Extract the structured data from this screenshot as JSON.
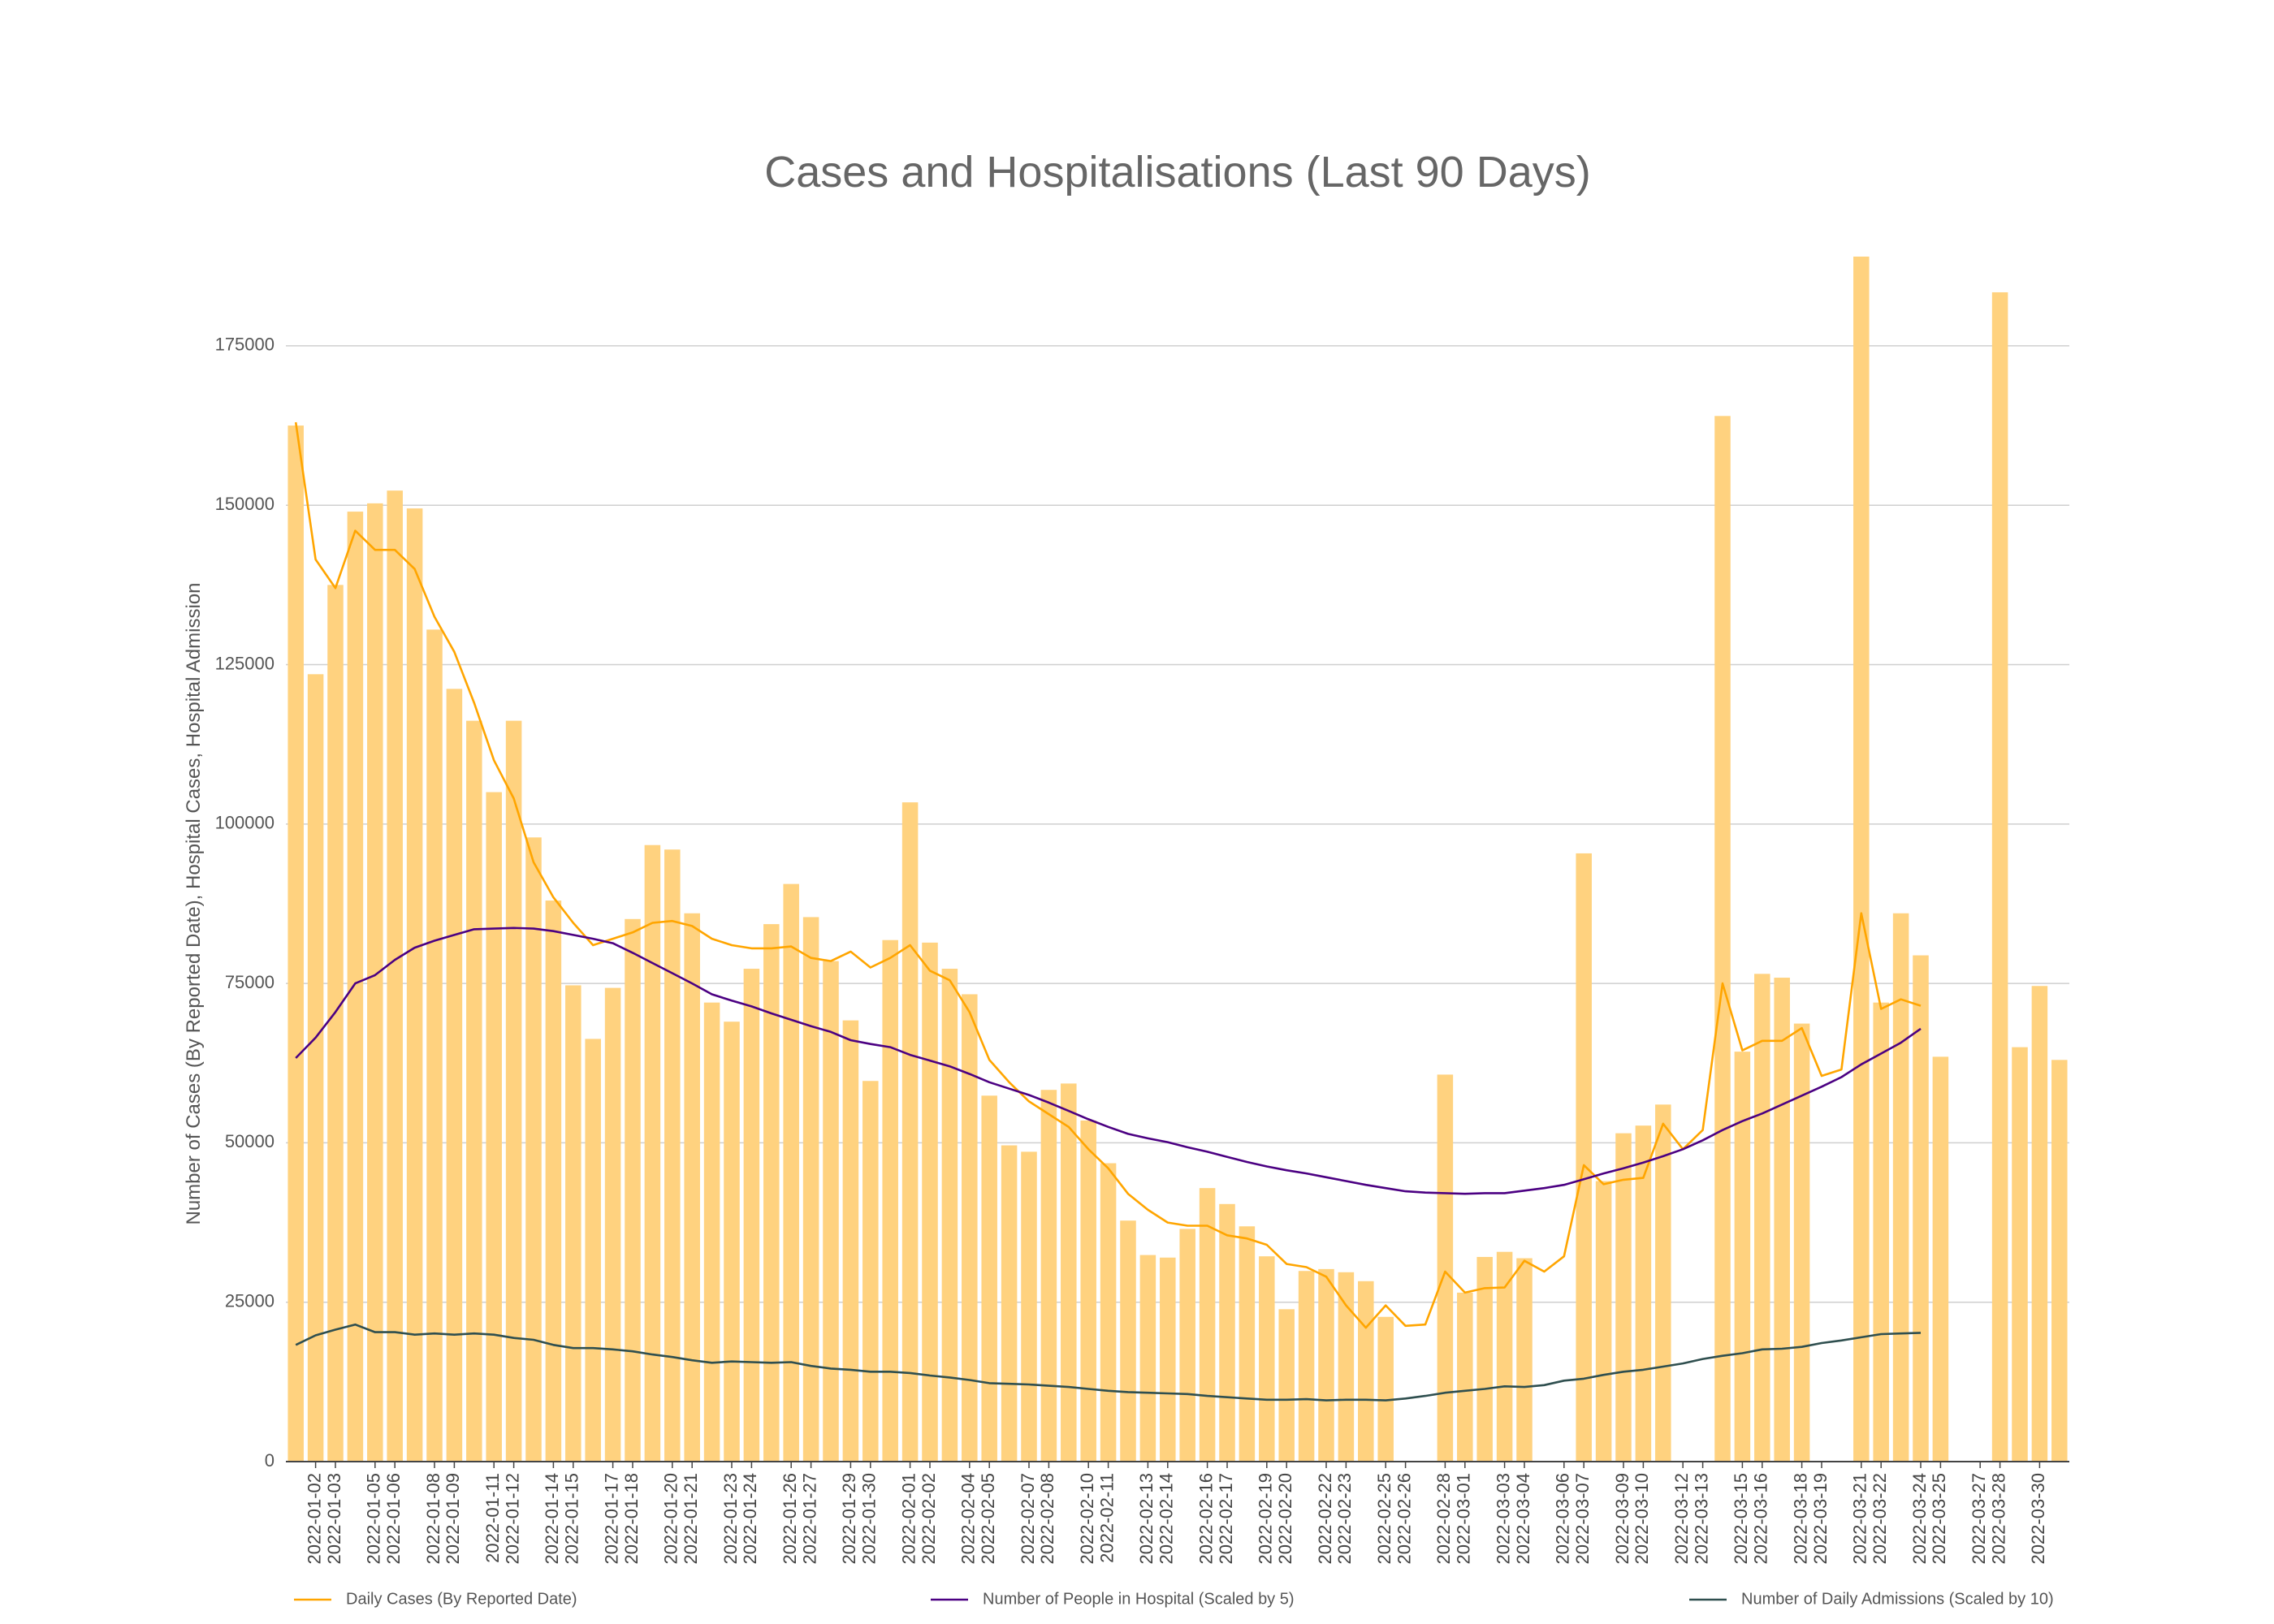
{
  "chart_data": {
    "type": "bar_line",
    "title": "Cases and Hospitalisations (Last 90 Days)",
    "y_label": "Number of Cases (By Reported Date), Hospital Cases, Hospital Admission",
    "x": [
      "2022-01-01",
      "2022-01-02",
      "2022-01-03",
      "2022-01-04",
      "2022-01-05",
      "2022-01-06",
      "2022-01-07",
      "2022-01-08",
      "2022-01-09",
      "2022-01-10",
      "2022-01-11",
      "2022-01-12",
      "2022-01-13",
      "2022-01-14",
      "2022-01-15",
      "2022-01-16",
      "2022-01-17",
      "2022-01-18",
      "2022-01-19",
      "2022-01-20",
      "2022-01-21",
      "2022-01-22",
      "2022-01-23",
      "2022-01-24",
      "2022-01-25",
      "2022-01-26",
      "2022-01-27",
      "2022-01-28",
      "2022-01-29",
      "2022-01-30",
      "2022-01-31",
      "2022-02-01",
      "2022-02-02",
      "2022-02-03",
      "2022-02-04",
      "2022-02-05",
      "2022-02-06",
      "2022-02-07",
      "2022-02-08",
      "2022-02-09",
      "2022-02-10",
      "2022-02-11",
      "2022-02-12",
      "2022-02-13",
      "2022-02-14",
      "2022-02-15",
      "2022-02-16",
      "2022-02-17",
      "2022-02-18",
      "2022-02-19",
      "2022-02-20",
      "2022-02-21",
      "2022-02-22",
      "2022-02-23",
      "2022-02-24",
      "2022-02-25",
      "2022-02-26",
      "2022-02-27",
      "2022-02-28",
      "2022-03-01",
      "2022-03-02",
      "2022-03-03",
      "2022-03-04",
      "2022-03-05",
      "2022-03-06",
      "2022-03-07",
      "2022-03-08",
      "2022-03-09",
      "2022-03-10",
      "2022-03-11",
      "2022-03-12",
      "2022-03-13",
      "2022-03-14",
      "2022-03-15",
      "2022-03-16",
      "2022-03-17",
      "2022-03-18",
      "2022-03-19",
      "2022-03-20",
      "2022-03-21",
      "2022-03-22",
      "2022-03-23",
      "2022-03-24",
      "2022-03-25",
      "2022-03-26",
      "2022-03-27",
      "2022-03-28",
      "2022-03-29",
      "2022-03-30",
      "2022-03-31"
    ],
    "xticks": [
      "2022-01-02",
      "2022-01-03",
      "2022-01-05",
      "2022-01-06",
      "2022-01-08",
      "2022-01-09",
      "2022-01-11",
      "2022-01-12",
      "2022-01-14",
      "2022-01-15",
      "2022-01-17",
      "2022-01-18",
      "2022-01-20",
      "2022-01-21",
      "2022-01-23",
      "2022-01-24",
      "2022-01-26",
      "2022-01-27",
      "2022-01-29",
      "2022-01-30",
      "2022-02-01",
      "2022-02-02",
      "2022-02-04",
      "2022-02-05",
      "2022-02-07",
      "2022-02-08",
      "2022-02-10",
      "2022-02-11",
      "2022-02-13",
      "2022-02-14",
      "2022-02-16",
      "2022-02-17",
      "2022-02-19",
      "2022-02-20",
      "2022-02-22",
      "2022-02-23",
      "2022-02-25",
      "2022-02-26",
      "2022-02-28",
      "2022-03-01",
      "2022-03-03",
      "2022-03-04",
      "2022-03-06",
      "2022-03-07",
      "2022-03-09",
      "2022-03-10",
      "2022-03-12",
      "2022-03-13",
      "2022-03-15",
      "2022-03-16",
      "2022-03-18",
      "2022-03-19",
      "2022-03-21",
      "2022-03-22",
      "2022-03-24",
      "2022-03-25",
      "2022-03-27",
      "2022-03-28",
      "2022-03-30"
    ],
    "bars": {
      "color": "#ffd27f",
      "values": [
        162500,
        123500,
        137500,
        149000,
        150300,
        152300,
        149500,
        130500,
        121200,
        116200,
        105000,
        116200,
        97900,
        88000,
        74700,
        66300,
        74300,
        85100,
        96700,
        96000,
        86000,
        72000,
        69000,
        77300,
        84300,
        90600,
        85400,
        78500,
        69200,
        59700,
        81800,
        103400,
        81400,
        77300,
        73300,
        57400,
        49600,
        48600,
        58300,
        59300,
        53500,
        46800,
        37800,
        32400,
        32000,
        36500,
        42900,
        40400,
        36900,
        32200,
        23900,
        29900,
        30200,
        29700,
        28300,
        22700,
        null,
        null,
        60700,
        26500,
        32100,
        32900,
        31900,
        null,
        null,
        95400,
        44000,
        51500,
        52700,
        56000,
        null,
        null,
        164000,
        64300,
        76500,
        75900,
        68700,
        null,
        null,
        189000,
        72000,
        86000,
        79400,
        63500,
        null,
        null,
        183400,
        65000,
        74600,
        63000
      ]
    },
    "series": [
      {
        "name": "Daily Cases (By Reported Date)",
        "color": "#ffa500",
        "values": [
          163000,
          141500,
          137000,
          146000,
          143000,
          143000,
          140000,
          132500,
          127000,
          119000,
          110000,
          104000,
          94000,
          88500,
          84500,
          81000,
          82000,
          83000,
          84500,
          84800,
          84000,
          82000,
          81000,
          80500,
          80500,
          80800,
          79000,
          78500,
          80000,
          77500,
          79000,
          81000,
          77000,
          75500,
          70500,
          63000,
          59500,
          56500,
          54500,
          52500,
          49000,
          46000,
          42000,
          39500,
          37500,
          37000,
          37000,
          35500,
          35000,
          34000,
          31000,
          30500,
          29000,
          24500,
          21000,
          24500,
          21300,
          21500,
          29800,
          26500,
          27200,
          27300,
          31500,
          29800,
          32200,
          46500,
          43500,
          44200,
          44500,
          53000,
          49000,
          52000,
          75000,
          64500,
          66000,
          66000,
          68000,
          60500,
          61500,
          86000,
          71000,
          72500,
          71500,
          null,
          null,
          null,
          null,
          null,
          null,
          null
        ]
      },
      {
        "name": "Number of People in Hospital (Scaled by 5)",
        "color": "#4b0082",
        "values": [
          63300,
          66500,
          70500,
          75000,
          76300,
          78700,
          80600,
          81700,
          82600,
          83500,
          83600,
          83700,
          83600,
          83200,
          82600,
          82000,
          81300,
          79800,
          78200,
          76600,
          75000,
          73300,
          72300,
          71400,
          70300,
          69300,
          68300,
          67400,
          66100,
          65500,
          65000,
          63800,
          62900,
          62000,
          60800,
          59500,
          58500,
          57500,
          56300,
          55000,
          53700,
          52500,
          51400,
          50700,
          50100,
          49300,
          48600,
          47800,
          47000,
          46300,
          45700,
          45200,
          44600,
          44000,
          43400,
          42900,
          42400,
          42200,
          42100,
          42000,
          42100,
          42100,
          42500,
          42900,
          43400,
          44300,
          45200,
          46000,
          46900,
          47900,
          49000,
          50400,
          52000,
          53400,
          54600,
          56000,
          57400,
          58800,
          60300,
          62300,
          64000,
          65700,
          67900,
          null,
          null,
          null,
          null,
          null,
          null,
          null
        ]
      },
      {
        "name": "Number of Daily Admissions (Scaled by 10)",
        "color": "#2f4f4f",
        "values": [
          18300,
          19800,
          20700,
          21500,
          20300,
          20300,
          19900,
          20100,
          19900,
          20100,
          19900,
          19400,
          19100,
          18300,
          17800,
          17800,
          17600,
          17300,
          16800,
          16400,
          15900,
          15500,
          15700,
          15600,
          15500,
          15600,
          15000,
          14600,
          14400,
          14100,
          14100,
          13900,
          13500,
          13200,
          12800,
          12300,
          12200,
          12100,
          11900,
          11700,
          11400,
          11100,
          10900,
          10800,
          10700,
          10600,
          10300,
          10100,
          9900,
          9700,
          9700,
          9800,
          9600,
          9700,
          9700,
          9600,
          9900,
          10300,
          10800,
          11100,
          11400,
          11800,
          11700,
          12000,
          12700,
          13000,
          13600,
          14100,
          14400,
          14900,
          15400,
          16100,
          16600,
          17000,
          17600,
          17700,
          18000,
          18600,
          19000,
          19500,
          20000,
          20100,
          20200,
          null,
          null,
          null,
          null,
          null,
          null,
          null
        ]
      }
    ],
    "ylim": [
      0,
      189000
    ],
    "yticks": [
      0,
      25000,
      50000,
      75000,
      100000,
      125000,
      150000,
      175000
    ],
    "grid": true,
    "legend": "bottom"
  }
}
